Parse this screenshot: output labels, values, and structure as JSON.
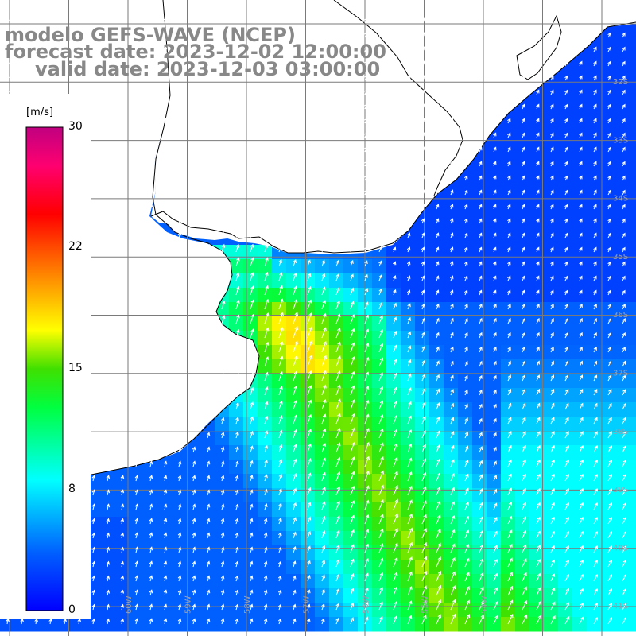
{
  "title": {
    "line1": "modelo GEFS-WAVE (NCEP)",
    "line2": "forecast date: 2023-12-02 12:00:00",
    "line3": "valid date: 2023-12-03 03:00:00"
  },
  "colorbar": {
    "units": "[m/s]",
    "ticks": [
      "30",
      "22",
      "15",
      "8",
      "0"
    ],
    "min": 0,
    "max": 30
  },
  "map": {
    "lat_labels": [
      "32S",
      "33S",
      "34S",
      "35S",
      "36S",
      "37S",
      "38S",
      "39S",
      "40S",
      "41S"
    ],
    "lon_labels": [
      "61W",
      "60W",
      "59W",
      "58W",
      "57W",
      "56W",
      "55W",
      "54W"
    ]
  },
  "colors": {
    "land": "#ffffff",
    "grid": "#7a7a7a",
    "coast": "#000000",
    "arrows": "#ffffff",
    "title": "#888888"
  }
}
